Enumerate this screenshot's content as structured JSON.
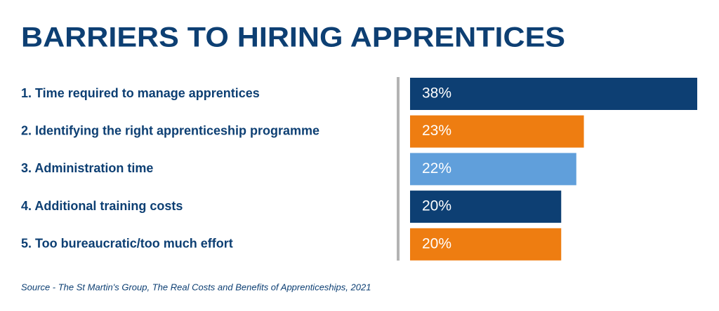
{
  "chart_data": {
    "type": "bar",
    "orientation": "horizontal",
    "title": "BARRIERS TO HIRING APPRENTICES",
    "categories": [
      "1. Time required to manage apprentices",
      "2. Identifying the right apprenticeship programme",
      "3. Administration time",
      "4. Additional training costs",
      "5. Too bureaucratic/too much effort"
    ],
    "values": [
      38,
      23,
      22,
      20,
      20
    ],
    "value_labels": [
      "38%",
      "23%",
      "22%",
      "20%",
      "20%"
    ],
    "colors": [
      "#0d3f73",
      "#ee7d11",
      "#609fdb",
      "#0d3f73",
      "#ee7d11"
    ],
    "source": "Source - The St Martin's Group, The Real Costs and Benefits of Apprenticeships, 2021"
  }
}
